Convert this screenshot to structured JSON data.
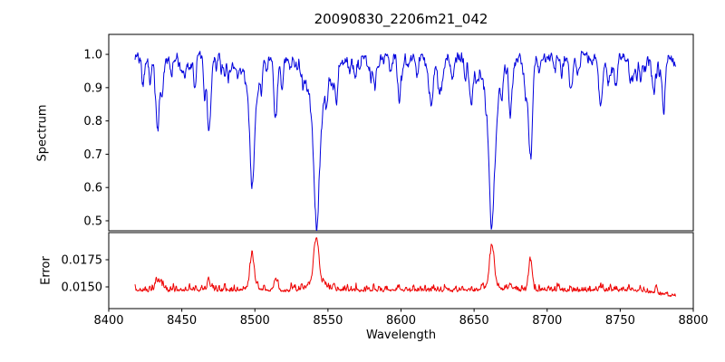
{
  "chart_data": {
    "type": "line",
    "title": "20090830_2206m21_042",
    "xlabel": "Wavelength",
    "x_range": [
      8400,
      8800
    ],
    "x_ticks": [
      8400,
      8450,
      8500,
      8550,
      8600,
      8650,
      8700,
      8750,
      8800
    ],
    "data_x_range": [
      8418,
      8788
    ],
    "n_points": 1200,
    "grid": false,
    "legend": "none",
    "panels": [
      {
        "name": "spectrum",
        "ylabel": "Spectrum",
        "color": "#0000dd",
        "y_range": [
          0.47,
          1.06
        ],
        "y_ticks": [
          {
            "v": 0.5,
            "label": "0.5"
          },
          {
            "v": 0.6,
            "label": "0.6"
          },
          {
            "v": 0.7,
            "label": "0.7"
          },
          {
            "v": 0.8,
            "label": "0.8"
          },
          {
            "v": 0.9,
            "label": "0.9"
          },
          {
            "v": 1.0,
            "label": "1.0"
          }
        ],
        "continuum": 0.99,
        "noise": {
          "seed": 101,
          "smooth_amp": 0.05,
          "fine_amp": 0.012
        },
        "micro_lines": {
          "seed": 202,
          "count": 90,
          "depth_min": 0.012,
          "depth_max": 0.06,
          "width_min": 0.4,
          "width_max": 1.3
        },
        "absorption_lines": [
          [
            8423.5,
            0.07,
            0.9
          ],
          [
            8428.0,
            0.05,
            0.8
          ],
          [
            8433.5,
            0.22,
            1.1
          ],
          [
            8436.5,
            0.12,
            0.9
          ],
          [
            8443.0,
            0.06,
            0.9
          ],
          [
            8452.0,
            0.05,
            0.8
          ],
          [
            8459.0,
            0.07,
            0.9
          ],
          [
            8468.5,
            0.21,
            1.2
          ],
          [
            8482.0,
            0.06,
            0.9
          ],
          [
            8498.1,
            0.28,
            1.5
          ],
          [
            8498.1,
            0.095,
            5.0
          ],
          [
            8514.2,
            0.19,
            1.1
          ],
          [
            8518.5,
            0.08,
            0.9
          ],
          [
            8542.1,
            0.36,
            1.9
          ],
          [
            8542.1,
            0.125,
            7.0
          ],
          [
            8556.0,
            0.05,
            0.8
          ],
          [
            8582.0,
            0.09,
            0.9
          ],
          [
            8598.8,
            0.11,
            1.0
          ],
          [
            8611.0,
            0.06,
            0.9
          ],
          [
            8621.5,
            0.09,
            1.0
          ],
          [
            8648.0,
            0.08,
            0.9
          ],
          [
            8662.2,
            0.355,
            1.7
          ],
          [
            8662.2,
            0.12,
            6.0
          ],
          [
            8674.8,
            0.13,
            1.0
          ],
          [
            8688.6,
            0.3,
            1.3
          ],
          [
            8710.0,
            0.05,
            0.8
          ],
          [
            8717.0,
            0.06,
            0.8
          ],
          [
            8736.5,
            0.12,
            1.0
          ],
          [
            8747.0,
            0.09,
            0.9
          ],
          [
            8757.0,
            0.07,
            0.9
          ],
          [
            8764.0,
            0.06,
            0.8
          ],
          [
            8773.0,
            0.05,
            0.8
          ],
          [
            8779.0,
            0.06,
            0.9
          ]
        ]
      },
      {
        "name": "error",
        "ylabel": "Error",
        "color": "#ee0000",
        "y_range": [
          0.013,
          0.02
        ],
        "y_ticks": [
          {
            "v": 0.015,
            "label": "0.0150"
          },
          {
            "v": 0.0175,
            "label": "0.0175"
          }
        ],
        "baseline": 0.0147,
        "noise": {
          "seed": 303,
          "smooth_amp": 0.0008,
          "fine_amp": 0.0002,
          "spike_amp": 0.0006
        },
        "right_rolloff": {
          "start": 8765,
          "slope": 2.5e-05
        },
        "peaks": [
          [
            8433.5,
            0.0009,
            1.3
          ],
          [
            8437.0,
            0.0005,
            1.0
          ],
          [
            8468.5,
            0.0006,
            1.2
          ],
          [
            8498.1,
            0.0028,
            1.4
          ],
          [
            8498.1,
            0.0004,
            4.0
          ],
          [
            8514.2,
            0.0011,
            1.1
          ],
          [
            8542.1,
            0.004,
            1.6
          ],
          [
            8542.1,
            0.0009,
            5.0
          ],
          [
            8598.8,
            0.0003,
            1.0
          ],
          [
            8662.2,
            0.0036,
            1.5
          ],
          [
            8662.2,
            0.0006,
            4.0
          ],
          [
            8674.8,
            0.0006,
            1.0
          ],
          [
            8688.6,
            0.0028,
            1.2
          ],
          [
            8736.5,
            0.0003,
            1.0
          ]
        ]
      }
    ]
  }
}
